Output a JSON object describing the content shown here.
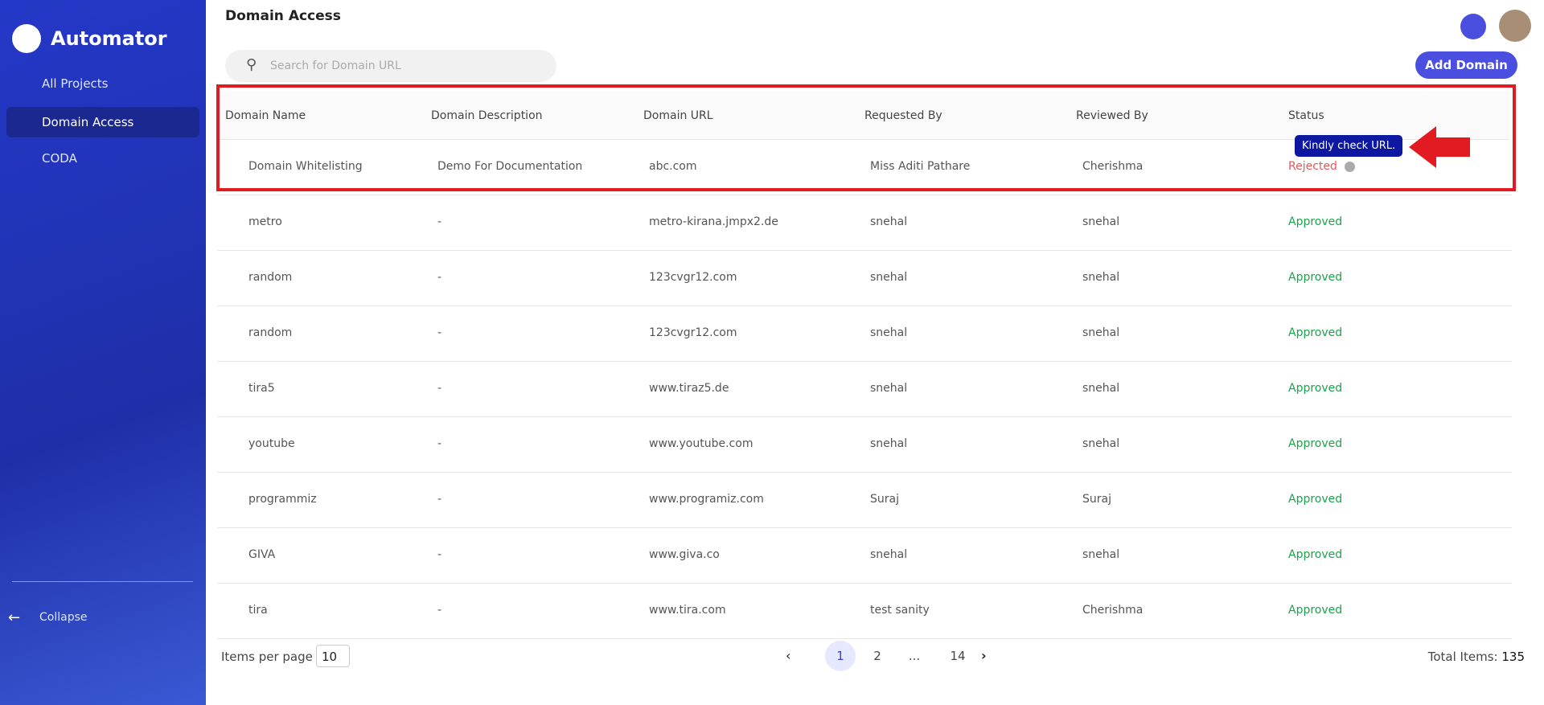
{
  "sidebar": {
    "brand": "Automator",
    "items": [
      "All Projects",
      "Domain Access",
      "CODA"
    ],
    "collapse": "Collapse"
  },
  "header": {
    "title": "Domain Access"
  },
  "search": {
    "placeholder": "Search for Domain URL"
  },
  "add_button": "Add Domain",
  "table": {
    "columns": [
      "Domain Name",
      "Domain Description",
      "Domain URL",
      "Requested By",
      "Reviewed By",
      "Status"
    ],
    "rows": [
      [
        "Domain Whitelisting",
        "Demo For Documentation",
        "abc.com",
        "Miss Aditi Pathare",
        "Cherishma",
        "Rejected"
      ],
      [
        "metro",
        "-",
        "metro-kirana.jmpx2.de",
        "snehal",
        "snehal",
        "Approved"
      ],
      [
        "random",
        "-",
        "123cvgr12.com",
        "snehal",
        "snehal",
        "Approved"
      ],
      [
        "random",
        "-",
        "123cvgr12.com",
        "snehal",
        "snehal",
        "Approved"
      ],
      [
        "tira5",
        "-",
        "www.tiraz5.de",
        "snehal",
        "snehal",
        "Approved"
      ],
      [
        "youtube",
        "-",
        "www.youtube.com",
        "snehal",
        "snehal",
        "Approved"
      ],
      [
        "programmiz",
        "-",
        "www.programiz.com",
        "Suraj",
        "Suraj",
        "Approved"
      ],
      [
        "GIVA",
        "-",
        "www.giva.co",
        "snehal",
        "snehal",
        "Approved"
      ],
      [
        "tira",
        "-",
        "www.tira.com",
        "test sanity",
        "Cherishma",
        "Approved"
      ]
    ]
  },
  "tooltip": "Kindly check URL.",
  "pagination": {
    "items_per_page_label": "Items per page",
    "items_per_page": "10",
    "pages": [
      "1",
      "2",
      "...",
      "14"
    ],
    "total_label": "Total Items:",
    "total": "135"
  }
}
